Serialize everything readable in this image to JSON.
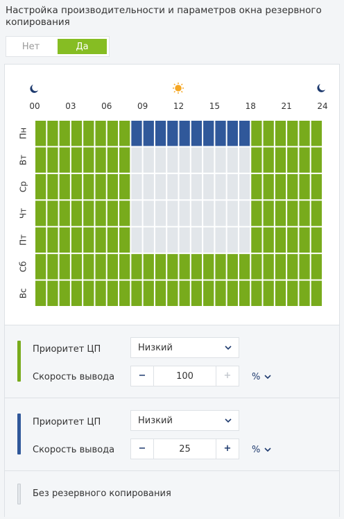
{
  "title": "Настройка производительности и параметров окна резервного копирования",
  "toggle": {
    "options": [
      "Нет",
      "Да"
    ],
    "selected": 1
  },
  "schedule": {
    "hours": [
      "00",
      "03",
      "06",
      "09",
      "12",
      "15",
      "18",
      "21",
      "24"
    ],
    "days": [
      "Пн",
      "Вт",
      "Ср",
      "Чт",
      "Пт",
      "Сб",
      "Вс"
    ],
    "cells": [
      [
        0,
        0,
        0,
        0,
        0,
        0,
        0,
        0,
        1,
        1,
        1,
        1,
        1,
        1,
        1,
        1,
        1,
        1,
        0,
        0,
        0,
        0,
        0,
        0
      ],
      [
        0,
        0,
        0,
        0,
        0,
        0,
        0,
        0,
        2,
        2,
        2,
        2,
        2,
        2,
        2,
        2,
        2,
        2,
        0,
        0,
        0,
        0,
        0,
        0
      ],
      [
        0,
        0,
        0,
        0,
        0,
        0,
        0,
        0,
        2,
        2,
        2,
        2,
        2,
        2,
        2,
        2,
        2,
        2,
        0,
        0,
        0,
        0,
        0,
        0
      ],
      [
        0,
        0,
        0,
        0,
        0,
        0,
        0,
        0,
        2,
        2,
        2,
        2,
        2,
        2,
        2,
        2,
        2,
        2,
        0,
        0,
        0,
        0,
        0,
        0
      ],
      [
        0,
        0,
        0,
        0,
        0,
        0,
        0,
        0,
        2,
        2,
        2,
        2,
        2,
        2,
        2,
        2,
        2,
        2,
        0,
        0,
        0,
        0,
        0,
        0
      ],
      [
        0,
        0,
        0,
        0,
        0,
        0,
        0,
        0,
        0,
        0,
        0,
        0,
        0,
        0,
        0,
        0,
        0,
        0,
        0,
        0,
        0,
        0,
        0,
        0
      ],
      [
        0,
        0,
        0,
        0,
        0,
        0,
        0,
        0,
        0,
        0,
        0,
        0,
        0,
        0,
        0,
        0,
        0,
        0,
        0,
        0,
        0,
        0,
        0,
        0
      ]
    ]
  },
  "modes": [
    {
      "color": "#78ab1c",
      "priority_label": "Приоритет ЦП",
      "priority_value": "Низкий",
      "speed_label": "Скорость вывода",
      "speed_value": 100,
      "unit": "%"
    },
    {
      "color": "#30589a",
      "priority_label": "Приоритет ЦП",
      "priority_value": "Низкий",
      "speed_label": "Скорость вывода",
      "speed_value": 25,
      "unit": "%"
    },
    {
      "color": "#e2e6ea",
      "label": "Без резервного копирования"
    }
  ]
}
